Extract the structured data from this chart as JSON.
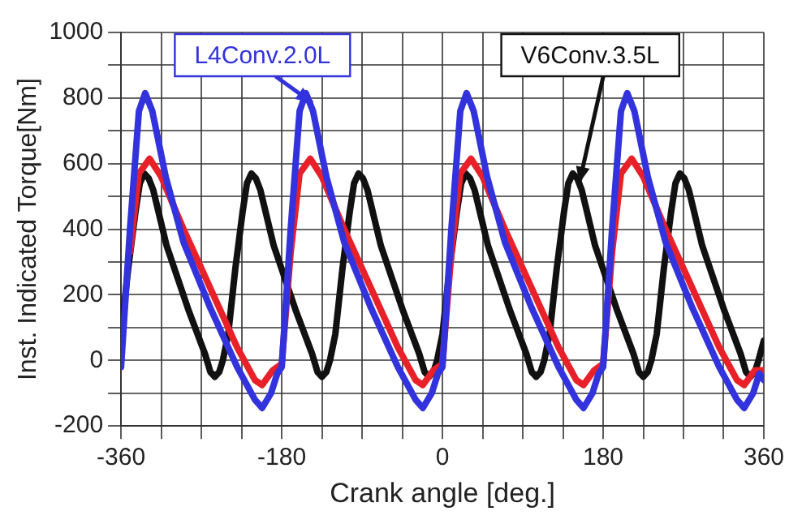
{
  "chart_data": {
    "type": "line",
    "xlabel": "Crank angle [deg.]",
    "ylabel": "Inst. Indicated Torque[Nm]",
    "xlim": [
      -360,
      360
    ],
    "xticks": [
      -360,
      {
        "value": -315,
        "label": null
      },
      {
        "value": -270,
        "label": null
      },
      {
        "value": -225,
        "label": null
      },
      -180,
      {
        "value": -135,
        "label": null
      },
      {
        "value": -90,
        "label": null
      },
      {
        "value": -45,
        "label": null
      },
      0,
      {
        "value": 45,
        "label": null
      },
      {
        "value": 90,
        "label": null
      },
      {
        "value": 135,
        "label": null
      },
      180,
      {
        "value": 225,
        "label": null
      },
      {
        "value": 270,
        "label": null
      },
      {
        "value": 315,
        "label": null
      },
      360
    ],
    "ylim": [
      -200,
      1000
    ],
    "yticks": [
      -200,
      {
        "value": -100,
        "label": null
      },
      0,
      {
        "value": 100,
        "label": null
      },
      200,
      {
        "value": 300,
        "label": null
      },
      400,
      {
        "value": 500,
        "label": null
      },
      600,
      {
        "value": 700,
        "label": null
      },
      800,
      {
        "value": 900,
        "label": null
      },
      1000
    ],
    "grid": true,
    "legend": false,
    "marker": "none",
    "line_style": "solid",
    "series": [
      {
        "name": "L4Conv.2.0L",
        "color": "#3333dd",
        "x": [
          -360,
          -350,
          -340,
          -333,
          -325,
          -310,
          -290,
          -260,
          -230,
          -210,
          -202,
          -192,
          -185,
          -180,
          -170,
          -160,
          -153,
          -145,
          -130,
          -110,
          -80,
          -50,
          -30,
          -22,
          -12,
          -5,
          0,
          10,
          20,
          27,
          35,
          50,
          70,
          100,
          130,
          150,
          158,
          168,
          175,
          180,
          190,
          200,
          207,
          215,
          230,
          250,
          280,
          310,
          330,
          338,
          348,
          355,
          360
        ],
        "values": [
          -20,
          400,
          760,
          815,
          760,
          560,
          360,
          160,
          -20,
          -120,
          -145,
          -100,
          -40,
          -20,
          400,
          760,
          815,
          760,
          560,
          360,
          160,
          -20,
          -120,
          -145,
          -100,
          -40,
          -20,
          400,
          760,
          815,
          760,
          560,
          360,
          160,
          -20,
          -120,
          -145,
          -100,
          -40,
          -20,
          400,
          760,
          815,
          760,
          560,
          360,
          160,
          -20,
          -120,
          -145,
          -100,
          -40,
          -60
        ]
      },
      {
        "color": "#e8202a",
        "x": [
          -350,
          -340,
          -328,
          -315,
          -290,
          -260,
          -230,
          -210,
          -202,
          -190,
          -180,
          -170,
          -160,
          -148,
          -135,
          -110,
          -80,
          -50,
          -30,
          -22,
          -10,
          0,
          10,
          20,
          32,
          45,
          70,
          100,
          130,
          150,
          158,
          170,
          180,
          190,
          200,
          212,
          225,
          250,
          280,
          310,
          330,
          338,
          350,
          360
        ],
        "values": [
          330,
          570,
          615,
          560,
          400,
          220,
          40,
          -60,
          -75,
          -30,
          -10,
          330,
          570,
          615,
          560,
          400,
          220,
          40,
          -60,
          -75,
          -30,
          -10,
          330,
          570,
          615,
          560,
          400,
          220,
          40,
          -60,
          -75,
          -30,
          -10,
          330,
          570,
          615,
          560,
          400,
          220,
          40,
          -60,
          -75,
          -30,
          -30
        ]
      },
      {
        "name": "V6Conv.3.5L",
        "color": "#111111",
        "x": [
          -360,
          -352,
          -344,
          -339,
          -334,
          -329,
          -324,
          -309,
          -284,
          -266,
          -260,
          -255,
          -250,
          -246,
          -240,
          -232,
          -224,
          -219,
          -214,
          -209,
          -204,
          -189,
          -164,
          -146,
          -140,
          -135,
          -130,
          -126,
          -120,
          -112,
          -104,
          -99,
          -94,
          -89,
          -84,
          -69,
          -44,
          -26,
          -20,
          -15,
          -10,
          -6,
          0,
          8,
          16,
          21,
          26,
          31,
          36,
          51,
          76,
          94,
          100,
          105,
          110,
          114,
          120,
          128,
          136,
          141,
          146,
          151,
          156,
          171,
          196,
          214,
          220,
          225,
          230,
          234,
          240,
          248,
          256,
          261,
          266,
          271,
          276,
          291,
          316,
          334,
          340,
          345,
          350,
          354,
          360
        ],
        "values": [
          80,
          280,
          450,
          540,
          570,
          555,
          520,
          350,
          150,
          20,
          -35,
          -50,
          -35,
          0,
          80,
          280,
          450,
          540,
          570,
          555,
          520,
          350,
          150,
          20,
          -35,
          -50,
          -35,
          0,
          80,
          280,
          450,
          540,
          570,
          555,
          520,
          350,
          150,
          20,
          -35,
          -50,
          -35,
          0,
          80,
          280,
          450,
          540,
          570,
          555,
          520,
          350,
          150,
          20,
          -35,
          -50,
          -35,
          0,
          80,
          280,
          450,
          540,
          570,
          555,
          520,
          350,
          150,
          20,
          -35,
          -50,
          -35,
          0,
          80,
          280,
          450,
          540,
          570,
          555,
          520,
          350,
          150,
          20,
          -35,
          -50,
          -35,
          0,
          60
        ]
      }
    ]
  }
}
